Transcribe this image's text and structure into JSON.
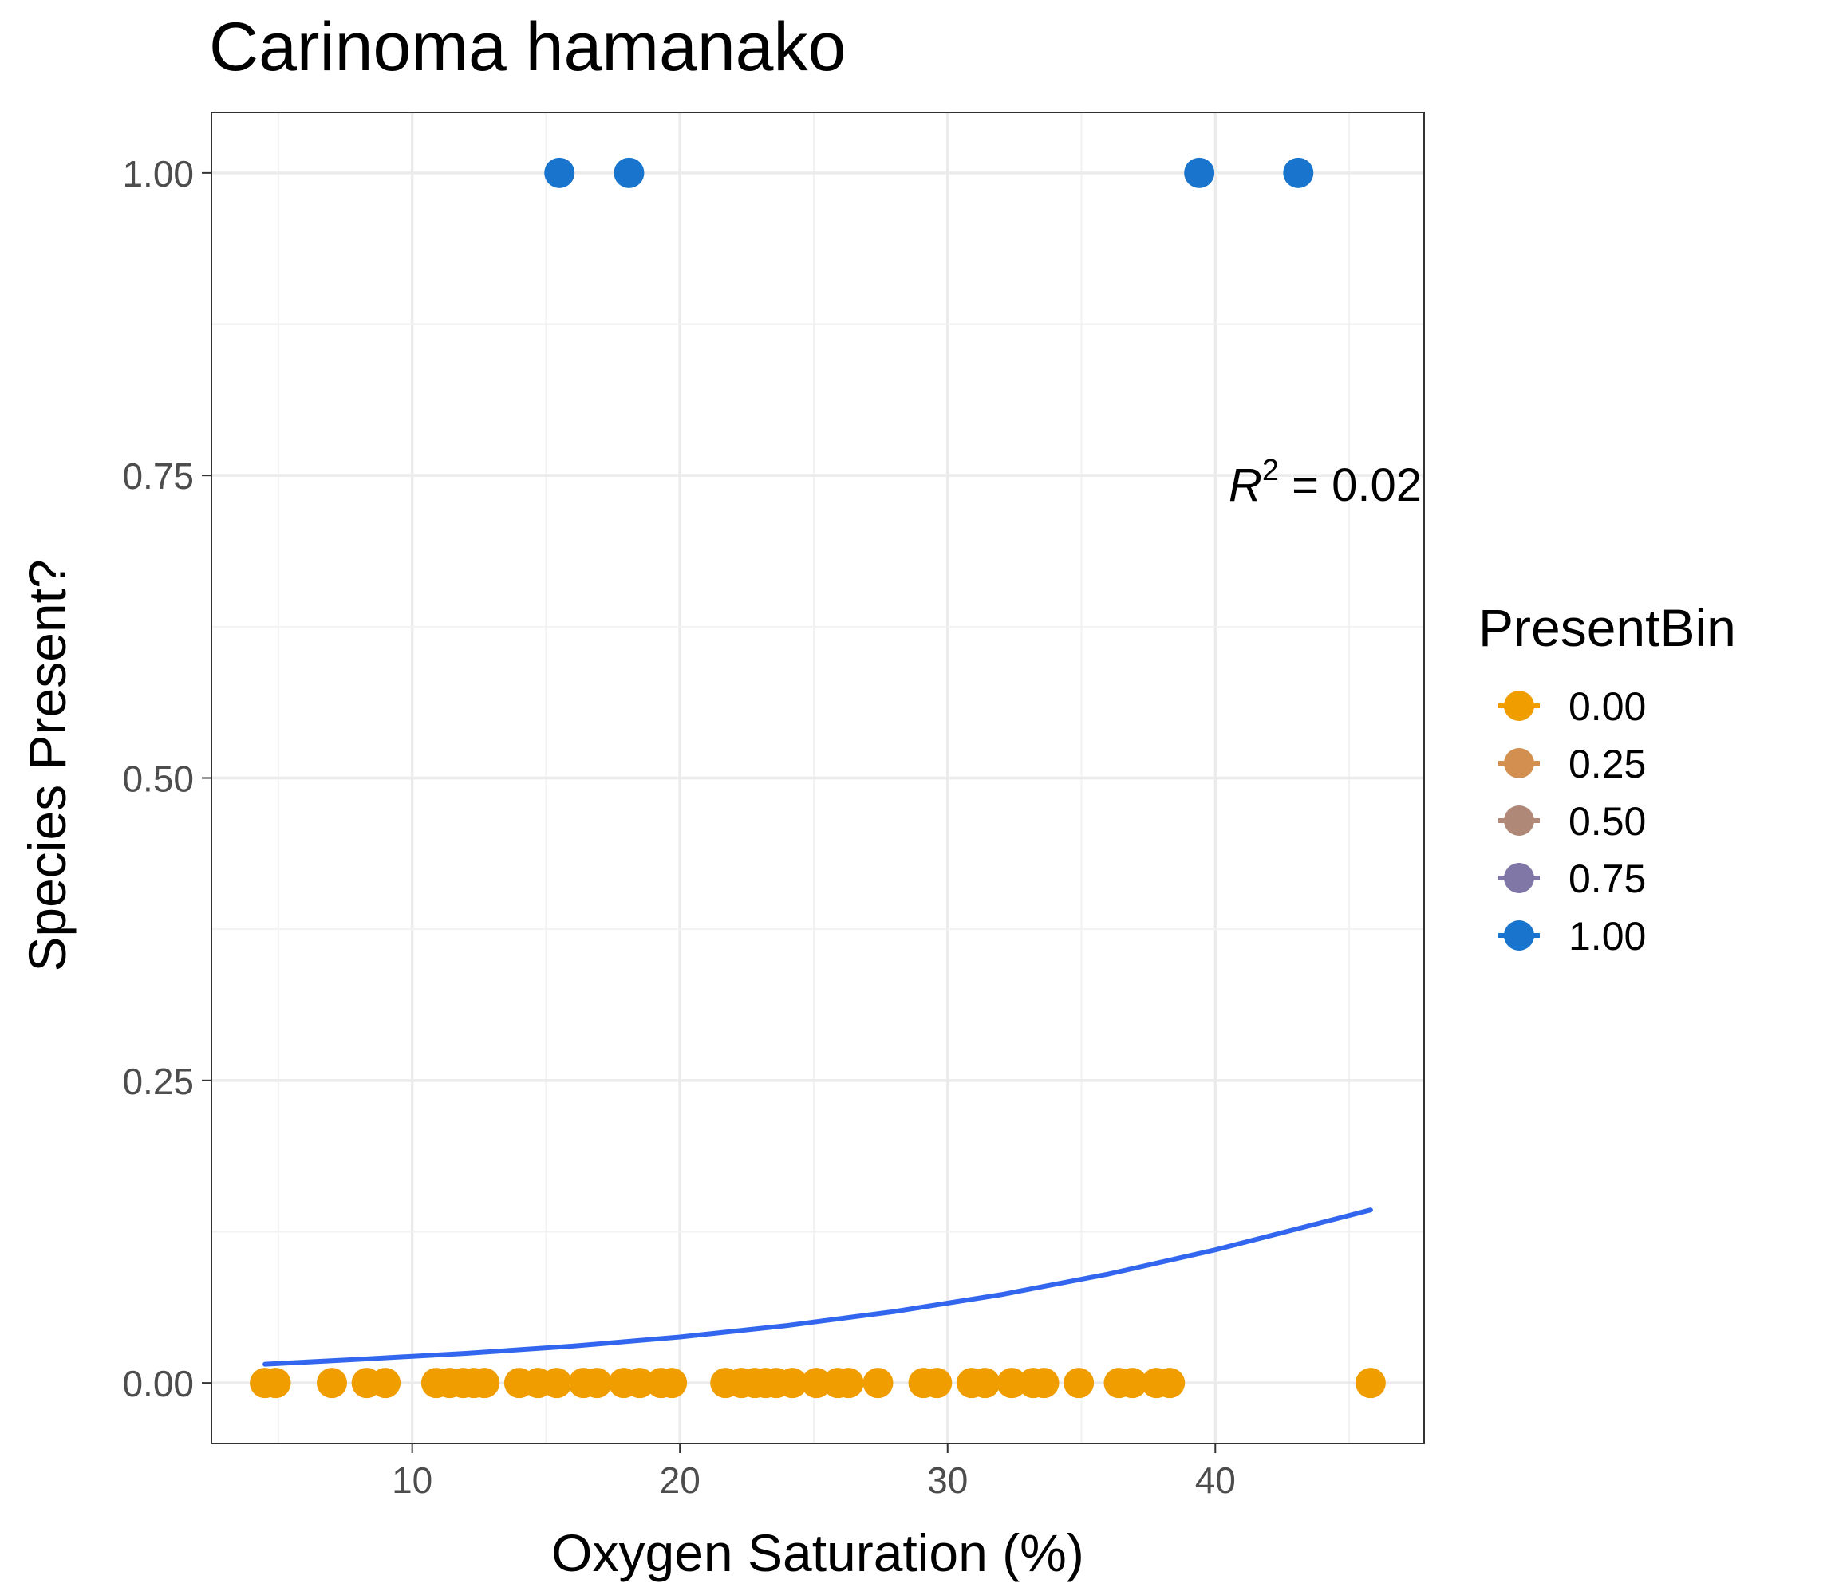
{
  "chart_data": {
    "type": "scatter",
    "title": "Carinoma hamanako",
    "xlabel": "Oxygen Saturation (%)",
    "ylabel": "Species Present?",
    "xlim": [
      2.5,
      47.8
    ],
    "ylim": [
      -0.05,
      1.05
    ],
    "x_ticks": [
      10,
      20,
      30,
      40
    ],
    "x_tick_labels": [
      "10",
      "20",
      "30",
      "40"
    ],
    "y_ticks": [
      0,
      0.25,
      0.5,
      0.75,
      1.0
    ],
    "y_tick_labels": [
      "0.00",
      "0.25",
      "0.50",
      "0.75",
      "1.00"
    ],
    "grid": true,
    "legend": {
      "title": "PresentBin",
      "position": "right",
      "entries": [
        {
          "label": "0.00",
          "color": "#f09d00"
        },
        {
          "label": "0.25",
          "color": "#d38f4f"
        },
        {
          "label": "0.50",
          "color": "#b08878"
        },
        {
          "label": "0.75",
          "color": "#8077a6"
        },
        {
          "label": "1.00",
          "color": "#1874cd"
        }
      ]
    },
    "annotation": {
      "lhs": "R",
      "sup": "2",
      "rhs": " = 0.02"
    },
    "series": [
      {
        "color": "#f09d00",
        "x": [
          4.5,
          4.9,
          7.0,
          8.3,
          9.0,
          10.9,
          11.4,
          11.9,
          12.3,
          12.7,
          14.0,
          14.7,
          15.4,
          16.4,
          16.9,
          17.9,
          18.5,
          19.3,
          19.7,
          21.7,
          22.3,
          22.8,
          23.2,
          23.6,
          24.2,
          25.1,
          25.9,
          26.3,
          27.4,
          29.1,
          29.6,
          30.9,
          31.4,
          32.4,
          33.2,
          33.6,
          34.9,
          36.4,
          36.9,
          37.8,
          38.3,
          45.8
        ],
        "y": [
          0,
          0,
          0,
          0,
          0,
          0,
          0,
          0,
          0,
          0,
          0,
          0,
          0,
          0,
          0,
          0,
          0,
          0,
          0,
          0,
          0,
          0,
          0,
          0,
          0,
          0,
          0,
          0,
          0,
          0,
          0,
          0,
          0,
          0,
          0,
          0,
          0,
          0,
          0,
          0,
          0,
          0
        ]
      },
      {
        "color": "#1874cd",
        "x": [
          15.5,
          18.1,
          39.4,
          43.1
        ],
        "y": [
          1,
          1,
          1,
          1
        ]
      }
    ],
    "fit_line": {
      "color": "#3366ee",
      "x": [
        4.5,
        8,
        12,
        16,
        20,
        24,
        28,
        32,
        36,
        40,
        43,
        45.8
      ],
      "y": [
        0.0155,
        0.0195,
        0.0245,
        0.0305,
        0.038,
        0.0475,
        0.059,
        0.073,
        0.09,
        0.11,
        0.127,
        0.143
      ]
    }
  }
}
